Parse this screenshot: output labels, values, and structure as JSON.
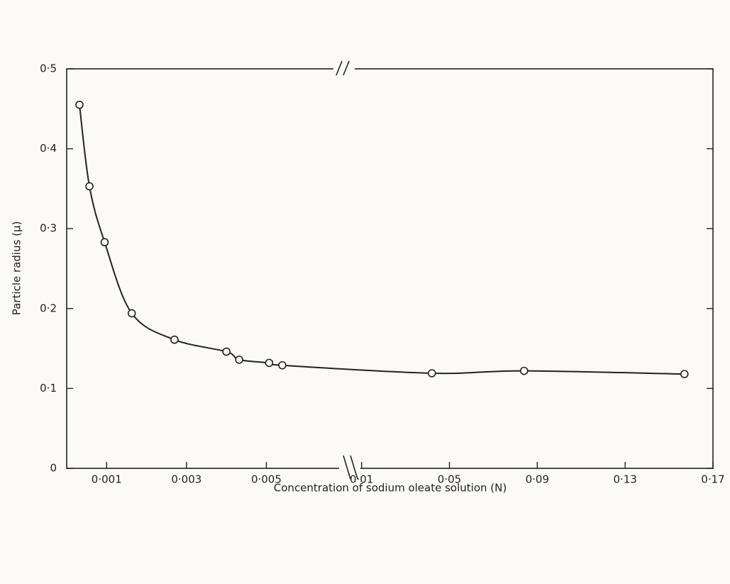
{
  "chart_data": {
    "type": "scatter",
    "x_label": "Concentration of sodium oleate solution (N)",
    "y_label": "Particle radius (μ)",
    "ylim": [
      0,
      0.5
    ],
    "yticks": [
      {
        "value": 0,
        "label": "0"
      },
      {
        "value": 0.1,
        "label": "0·1"
      },
      {
        "value": 0.2,
        "label": "0·2"
      },
      {
        "value": 0.3,
        "label": "0·3"
      },
      {
        "value": 0.4,
        "label": "0·4"
      },
      {
        "value": 0.5,
        "label": "0·5"
      }
    ],
    "color": "#222222",
    "fit_curve": true,
    "panels": [
      {
        "xlim": [
          0,
          0.007
        ],
        "xticks": [
          {
            "value": 0.001,
            "label": "0·001"
          },
          {
            "value": 0.003,
            "label": "0·003"
          },
          {
            "value": 0.005,
            "label": "0·005"
          }
        ],
        "x": [
          0.00032,
          0.00057,
          0.00095,
          0.00163,
          0.0027,
          0.004,
          0.00432,
          0.00507,
          0.0054
        ],
        "values": [
          0.455,
          0.353,
          0.283,
          0.194,
          0.161,
          0.146,
          0.136,
          0.132,
          0.129
        ]
      },
      {
        "xlim": [
          0.003,
          0.17
        ],
        "xticks": [
          {
            "value": 0.01,
            "label": "0·01"
          },
          {
            "value": 0.05,
            "label": "0·05"
          },
          {
            "value": 0.09,
            "label": "0·09"
          },
          {
            "value": 0.13,
            "label": "0·13"
          },
          {
            "value": 0.17,
            "label": "0·17"
          }
        ],
        "x": [
          0.042,
          0.084,
          0.157
        ],
        "values": [
          0.119,
          0.122,
          0.118
        ]
      }
    ]
  }
}
